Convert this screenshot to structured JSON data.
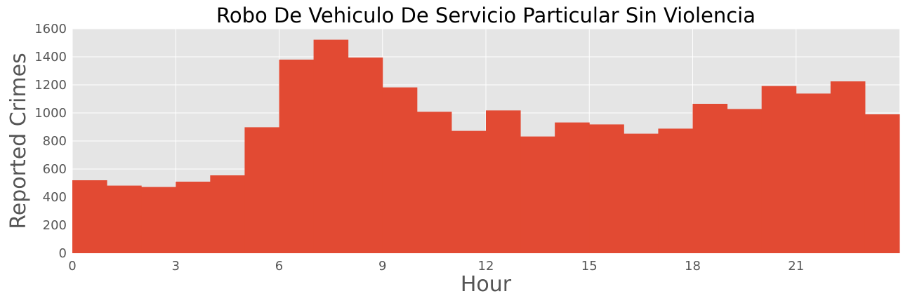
{
  "chart_data": {
    "type": "bar",
    "title": "Robo De Vehiculo De Servicio Particular Sin Violencia",
    "xlabel": "Hour",
    "ylabel": "Reported Crimes",
    "x_bins": [
      0,
      1,
      2,
      3,
      4,
      5,
      6,
      7,
      8,
      9,
      10,
      11,
      12,
      13,
      14,
      15,
      16,
      17,
      18,
      19,
      20,
      21,
      22,
      23
    ],
    "bin_width": 1,
    "values": [
      520,
      482,
      472,
      510,
      555,
      898,
      1380,
      1522,
      1395,
      1182,
      1008,
      872,
      1018,
      832,
      932,
      918,
      852,
      888,
      1065,
      1028,
      1192,
      1138,
      1225,
      990
    ],
    "x_ticks": [
      0,
      3,
      6,
      9,
      12,
      15,
      18,
      21
    ],
    "y_ticks": [
      0,
      200,
      400,
      600,
      800,
      1000,
      1200,
      1400,
      1600
    ],
    "xlim": [
      0,
      24
    ],
    "ylim": [
      0,
      1600
    ],
    "grid": true,
    "colors": {
      "bar": "#e24a33",
      "plot_background": "#e5e5e5",
      "grid": "#ffffff"
    }
  }
}
